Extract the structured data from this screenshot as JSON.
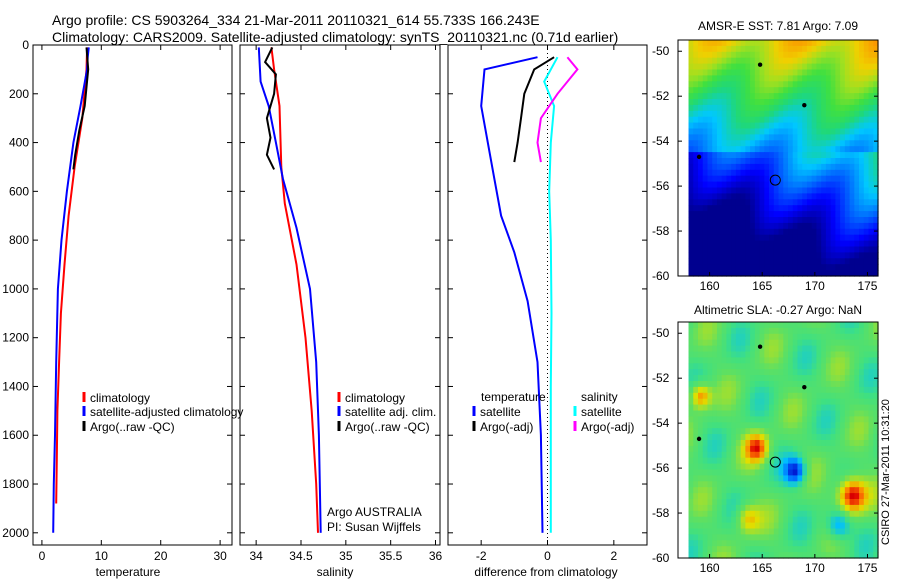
{
  "header": {
    "line1": "Argo profile: CS 5903264_334 21-Mar-2011 20110321_614 55.733S 166.243E",
    "line2": "Climatology: CARS2009. Satellite-adjusted climatology: synTS_20110321.nc (0.71d earlier)"
  },
  "stamp": "CSIRO 27-Mar-2011 10:31:20",
  "colors": {
    "climatology": "#ff0000",
    "satellite": "#0000ff",
    "argo": "#000000",
    "sat_salt": "#00ffff",
    "argo_salt": "#ff00ff"
  },
  "chart_data": [
    {
      "type": "line",
      "xlabel": "temperature",
      "ylim": [
        2050,
        0
      ],
      "xlim": [
        -1.5,
        32
      ],
      "xticks": [
        "0",
        "10",
        "20",
        "30"
      ],
      "yticks": [
        "0",
        "200",
        "400",
        "600",
        "800",
        "1000",
        "1200",
        "1400",
        "1600",
        "1800",
        "2000"
      ],
      "legend": [
        "climatology",
        "satellite-adjusted climatology",
        "Argo(..raw -QC)"
      ],
      "series": [
        {
          "name": "climatology",
          "color": "#ff0000",
          "points": [
            [
              7.6,
              10
            ],
            [
              7.5,
              100
            ],
            [
              6.8,
              300
            ],
            [
              5.5,
              500
            ],
            [
              4.5,
              700
            ],
            [
              3.8,
              900
            ],
            [
              3.2,
              1100
            ],
            [
              2.9,
              1300
            ],
            [
              2.6,
              1500
            ],
            [
              2.5,
              1700
            ],
            [
              2.4,
              1880
            ]
          ]
        },
        {
          "name": "satellite-adjusted climatology",
          "color": "#0000ff",
          "points": [
            [
              7.9,
              10
            ],
            [
              7.7,
              50
            ],
            [
              7.6,
              100
            ],
            [
              6.5,
              250
            ],
            [
              5.3,
              400
            ],
            [
              4.2,
              600
            ],
            [
              3.3,
              800
            ],
            [
              2.7,
              1000
            ],
            [
              2.4,
              1300
            ],
            [
              2.2,
              1600
            ],
            [
              2.0,
              1800
            ],
            [
              1.9,
              2000
            ]
          ]
        },
        {
          "name": "Argo(..raw -QC)",
          "color": "#000000",
          "points": [
            [
              7.5,
              10
            ],
            [
              7.8,
              100
            ],
            [
              7.2,
              250
            ],
            [
              6.3,
              350
            ],
            [
              5.6,
              450
            ],
            [
              5.3,
              510
            ]
          ]
        }
      ]
    },
    {
      "type": "line",
      "xlabel": "salinity",
      "ylim": [
        2050,
        0
      ],
      "xlim": [
        33.82,
        36.05
      ],
      "xticks": [
        "34",
        "34.5",
        "35",
        "35.5",
        "36"
      ],
      "legend": [
        "climatology",
        "satellite adj. clim.",
        "Argo(..raw -QC)"
      ],
      "annotation": [
        "Argo AUSTRALIA",
        "PI: Susan Wijffels"
      ],
      "series": [
        {
          "name": "climatology",
          "color": "#ff0000",
          "points": [
            [
              34.17,
              10
            ],
            [
              34.2,
              100
            ],
            [
              34.26,
              250
            ],
            [
              34.28,
              500
            ],
            [
              34.32,
              650
            ],
            [
              34.45,
              900
            ],
            [
              34.55,
              1200
            ],
            [
              34.62,
              1500
            ],
            [
              34.67,
              1800
            ],
            [
              34.69,
              2000
            ]
          ]
        },
        {
          "name": "satellite adj. clim.",
          "color": "#0000ff",
          "points": [
            [
              34.03,
              10
            ],
            [
              34.05,
              150
            ],
            [
              34.14,
              250
            ],
            [
              34.22,
              400
            ],
            [
              34.3,
              550
            ],
            [
              34.45,
              750
            ],
            [
              34.6,
              1000
            ],
            [
              34.67,
              1300
            ],
            [
              34.7,
              1600
            ],
            [
              34.72,
              2000
            ]
          ]
        },
        {
          "name": "Argo(..raw -QC)",
          "color": "#000000",
          "points": [
            [
              34.18,
              10
            ],
            [
              34.1,
              70
            ],
            [
              34.22,
              120
            ],
            [
              34.2,
              200
            ],
            [
              34.12,
              300
            ],
            [
              34.16,
              380
            ],
            [
              34.12,
              450
            ],
            [
              34.2,
              510
            ]
          ]
        }
      ]
    },
    {
      "type": "line",
      "xlabel": "difference from climatology",
      "ylim": [
        2050,
        0
      ],
      "xlim": [
        -3,
        3
      ],
      "xticks": [
        "-2",
        "0",
        "2"
      ],
      "legend_titles": [
        "temperature",
        "salinity"
      ],
      "legend": [
        "satellite",
        "Argo(-adj)",
        "satellite",
        "Argo(-adj)"
      ],
      "series": [
        {
          "name": "satellite",
          "color": "#0000ff",
          "points": [
            [
              -0.3,
              50
            ],
            [
              -1.9,
              100
            ],
            [
              -2.0,
              250
            ],
            [
              -1.8,
              400
            ],
            [
              -1.6,
              550
            ],
            [
              -1.4,
              700
            ],
            [
              -1.0,
              850
            ],
            [
              -0.6,
              1050
            ],
            [
              -0.3,
              1300
            ],
            [
              -0.2,
              1600
            ],
            [
              -0.15,
              2000
            ]
          ]
        },
        {
          "name": "Argo(-adj)",
          "color": "#000000",
          "points": [
            [
              0.2,
              50
            ],
            [
              -0.4,
              100
            ],
            [
              -0.7,
              200
            ],
            [
              -0.8,
              300
            ],
            [
              -0.9,
              400
            ],
            [
              -1.0,
              480
            ]
          ]
        },
        {
          "name": "satellite",
          "color": "#00ffff",
          "points": [
            [
              0.3,
              50
            ],
            [
              -0.1,
              150
            ],
            [
              0.2,
              250
            ],
            [
              0.1,
              400
            ],
            [
              0.05,
              600
            ],
            [
              0.1,
              800
            ],
            [
              0.12,
              1100
            ],
            [
              0.1,
              1400
            ],
            [
              0.1,
              1700
            ],
            [
              0.1,
              2000
            ]
          ]
        },
        {
          "name": "Argo(-adj)",
          "color": "#ff00ff",
          "points": [
            [
              0.6,
              50
            ],
            [
              0.9,
              100
            ],
            [
              0.3,
              200
            ],
            [
              -0.2,
              300
            ],
            [
              -0.3,
              400
            ],
            [
              -0.2,
              480
            ]
          ]
        }
      ]
    },
    {
      "type": "heatmap",
      "title": "AMSR-E SST: 7.81  Argo: 7.09",
      "xticks": [
        "160",
        "165",
        "170",
        "175"
      ],
      "yticks": [
        "-50",
        "-52",
        "-54",
        "-56",
        "-58",
        "-60"
      ],
      "xlim": [
        157,
        176
      ],
      "ylim": [
        -60,
        -49.5
      ],
      "float_position": [
        166.243,
        -55.733
      ]
    },
    {
      "type": "heatmap",
      "title": "Altimetric SLA: -0.27  Argo: NaN",
      "xticks": [
        "160",
        "165",
        "170",
        "175"
      ],
      "yticks": [
        "-50",
        "-52",
        "-54",
        "-56",
        "-58",
        "-60"
      ],
      "xlim": [
        157,
        176
      ],
      "ylim": [
        -60,
        -49.5
      ],
      "float_position": [
        166.243,
        -55.733
      ]
    }
  ]
}
